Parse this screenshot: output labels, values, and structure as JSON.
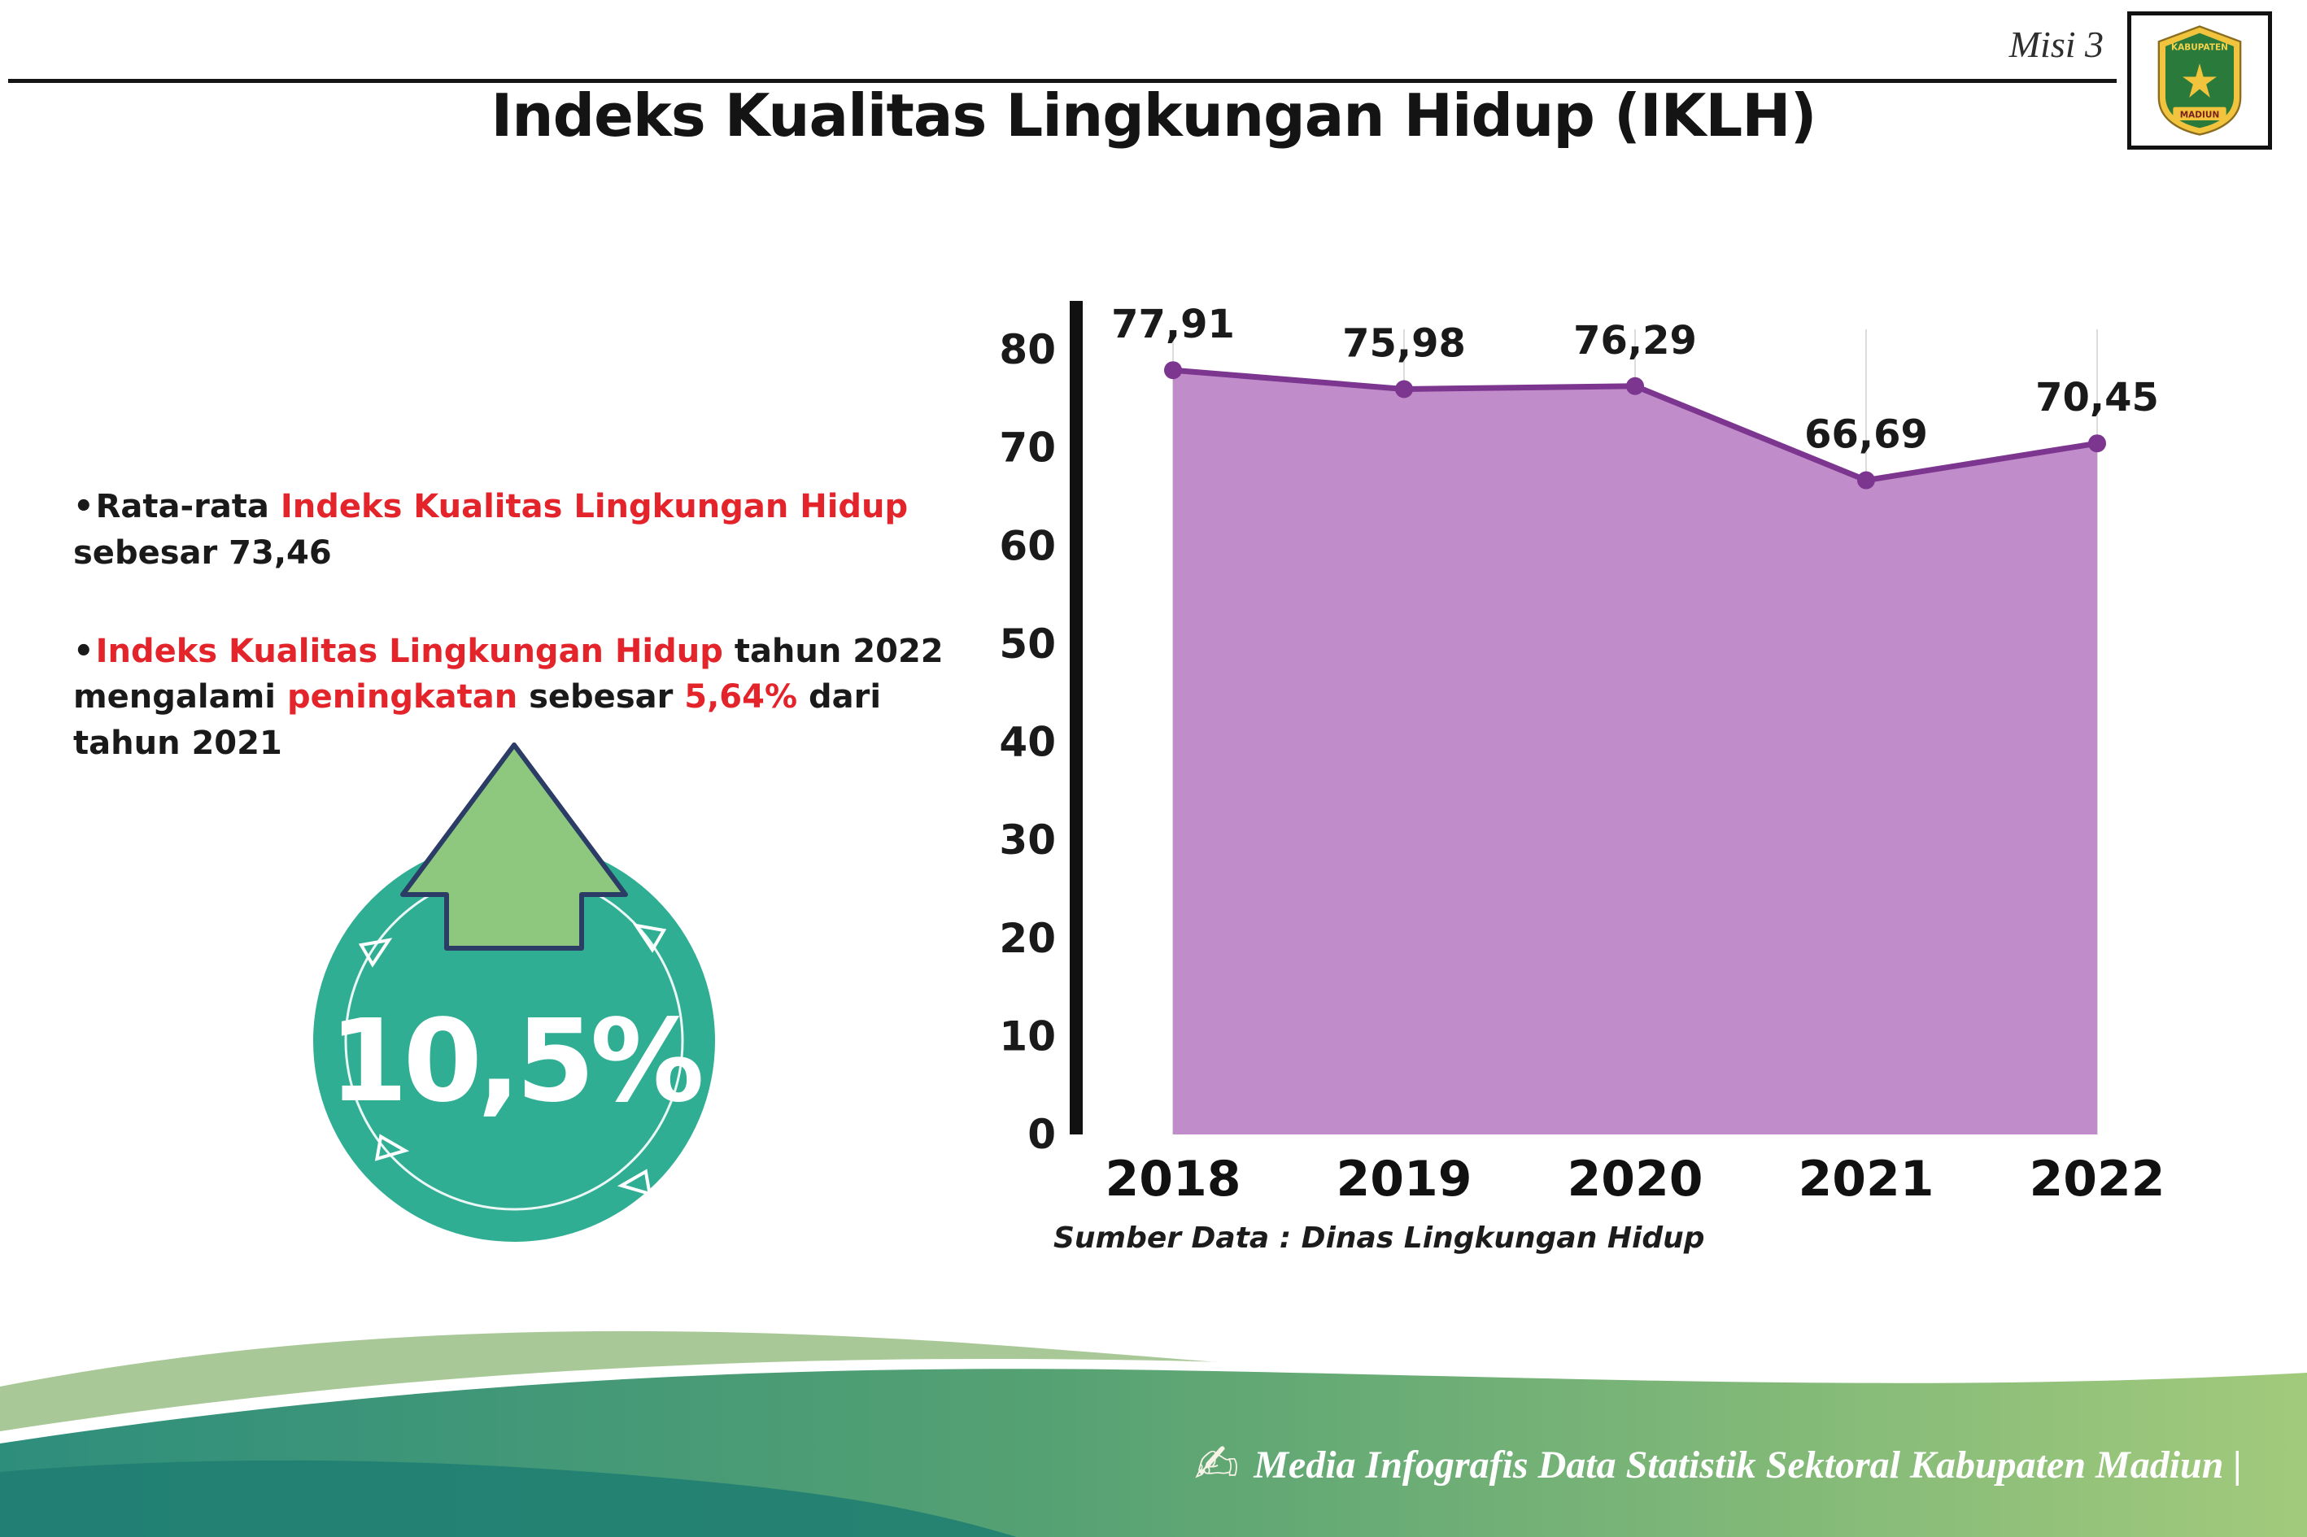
{
  "header": {
    "misi_label": "Misi 3",
    "title": "Indeks Kualitas Lingkungan Hidup (IKLH)",
    "logo": {
      "line1": "KABUPATEN",
      "line2": "MADIUN"
    }
  },
  "bullets": {
    "b1": {
      "s1": "Rata-rata ",
      "s2": "Indeks Kualitas Lingkungan Hidup",
      "s3": " sebesar 73,46"
    },
    "b2": {
      "s1": "Indeks Kualitas Lingkungan Hidup",
      "s2": " tahun 2022 mengalami ",
      "s3": "peningkatan",
      "s4": " sebesar ",
      "s5": "5,64%",
      "s6": " dari tahun 2021"
    }
  },
  "badge": {
    "value": "10,5%"
  },
  "chart_data": {
    "type": "area",
    "categories": [
      "2018",
      "2019",
      "2020",
      "2021",
      "2022"
    ],
    "values": [
      77.91,
      75.98,
      76.29,
      66.69,
      70.45
    ],
    "value_labels": [
      "77,91",
      "75,98",
      "76,29",
      "66,69",
      "70,45"
    ],
    "title": "Indeks Kualitas Lingkungan Hidup (IKLH)",
    "xlabel": "",
    "ylabel": "",
    "ylim": [
      0,
      80
    ],
    "ytick_step": 10,
    "grid": "faint-vertical",
    "legend": "none",
    "line_color": "#7d3690",
    "fill_color": "#c08cc9",
    "source": "Sumber Data : Dinas Lingkungan Hidup"
  },
  "footer": {
    "text": "Media Infografis Data Statistik Sektoral Kabupaten Madiun |"
  },
  "colors": {
    "accent_red": "#e3242b",
    "badge_teal": "#2fae94",
    "arrow_green": "#8dc87e",
    "arrow_outline": "#2b3c66",
    "footer_teal": "#2e8e7c",
    "footer_green": "#a2ca7c"
  }
}
